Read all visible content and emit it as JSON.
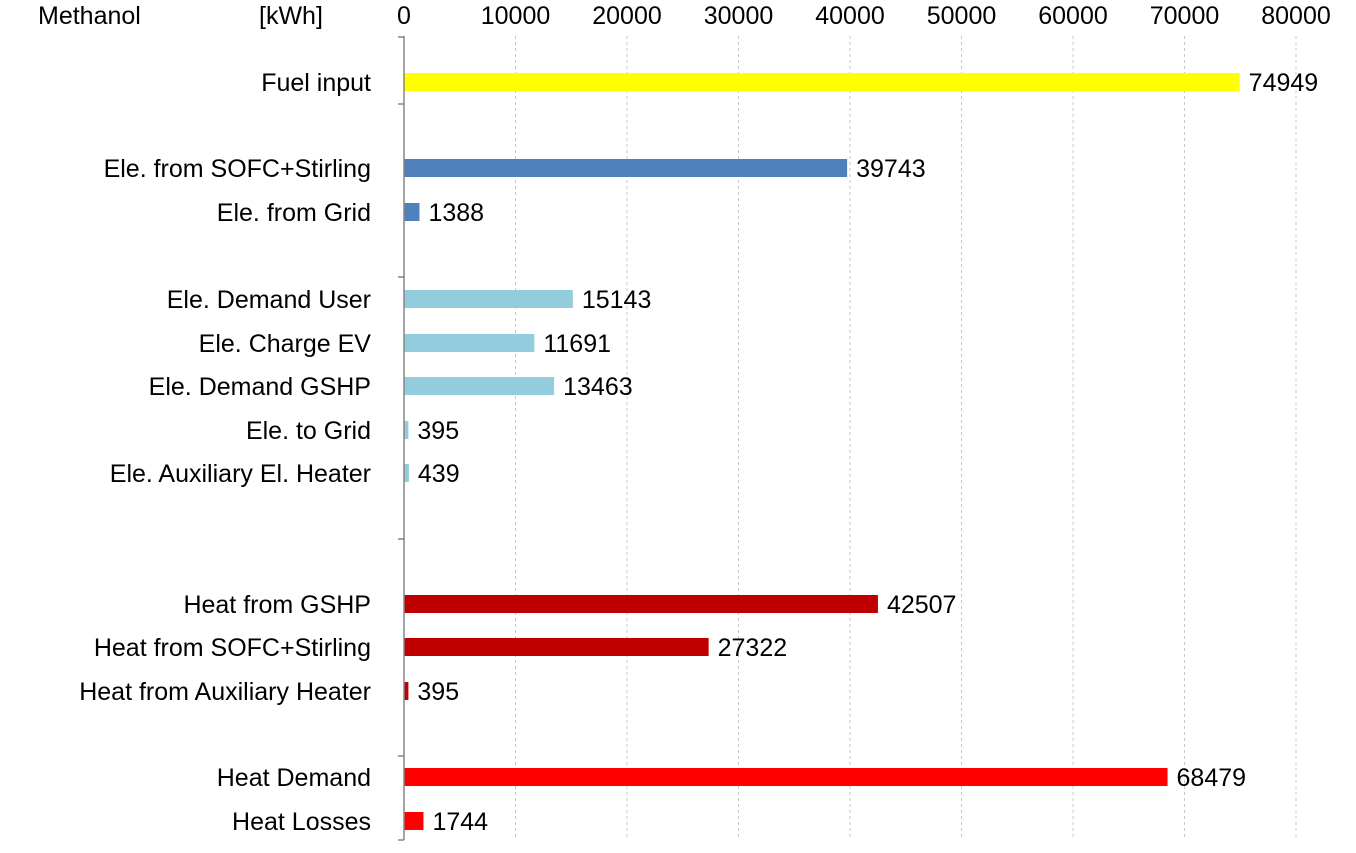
{
  "header": {
    "fuel_label": "Methanol",
    "unit_label": "[kWh]"
  },
  "chart_data": {
    "type": "bar",
    "orientation": "horizontal",
    "title": "",
    "xlabel": "",
    "ylabel": "",
    "xlim": [
      0,
      80000
    ],
    "x_ticks": [
      0,
      10000,
      20000,
      30000,
      40000,
      50000,
      60000,
      70000,
      80000
    ],
    "x_axis_position": "top",
    "grid": true,
    "legend": "none",
    "bars": [
      {
        "category": "Fuel input",
        "value": 74949,
        "label": "74949",
        "color": "#ffff00"
      },
      {
        "category": "Ele. from SOFC+Stirling",
        "value": 39743,
        "label": "39743",
        "color": "#4f81bd"
      },
      {
        "category": "Ele. from Grid",
        "value": 1388,
        "label": "1388",
        "color": "#4f81bd"
      },
      {
        "category": "Ele. Demand User",
        "value": 15143,
        "label": "15143",
        "color": "#93cddd"
      },
      {
        "category": "Ele. Charge EV",
        "value": 11691,
        "label": "11691",
        "color": "#93cddd"
      },
      {
        "category": "Ele. Demand GSHP",
        "value": 13463,
        "label": "13463",
        "color": "#93cddd"
      },
      {
        "category": "Ele. to Grid",
        "value": 395,
        "label": "395",
        "color": "#93cddd"
      },
      {
        "category": "Ele. Auxiliary El. Heater",
        "value": 439,
        "label": "439",
        "color": "#93cddd"
      },
      {
        "category": "Heat from GSHP",
        "value": 42507,
        "label": "42507",
        "color": "#c00000"
      },
      {
        "category": "Heat from SOFC+Stirling",
        "value": 27322,
        "label": "27322",
        "color": "#c00000"
      },
      {
        "category": "Heat from Auxiliary Heater",
        "value": 395,
        "label": "395",
        "color": "#c00000"
      },
      {
        "category": "Heat Demand",
        "value": 68479,
        "label": "68479",
        "color": "#ff0000"
      },
      {
        "category": "Heat Losses",
        "value": 1744,
        "label": "1744",
        "color": "#ff0000"
      }
    ]
  }
}
